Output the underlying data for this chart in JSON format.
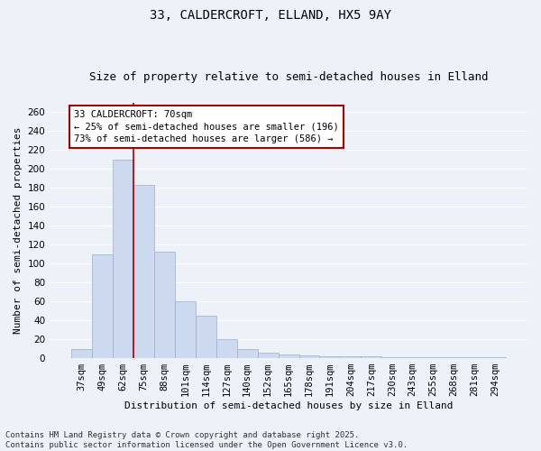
{
  "title": "33, CALDERCROFT, ELLAND, HX5 9AY",
  "subtitle": "Size of property relative to semi-detached houses in Elland",
  "xlabel": "Distribution of semi-detached houses by size in Elland",
  "ylabel": "Number of semi-detached properties",
  "footer1": "Contains HM Land Registry data © Crown copyright and database right 2025.",
  "footer2": "Contains public sector information licensed under the Open Government Licence v3.0.",
  "categories": [
    "37sqm",
    "49sqm",
    "62sqm",
    "75sqm",
    "88sqm",
    "101sqm",
    "114sqm",
    "127sqm",
    "140sqm",
    "152sqm",
    "165sqm",
    "178sqm",
    "191sqm",
    "204sqm",
    "217sqm",
    "230sqm",
    "243sqm",
    "255sqm",
    "268sqm",
    "281sqm",
    "294sqm"
  ],
  "values": [
    10,
    110,
    210,
    183,
    113,
    60,
    45,
    20,
    10,
    6,
    4,
    3,
    2,
    2,
    2,
    1,
    1,
    1,
    1,
    1,
    1
  ],
  "highlight_index": 2,
  "bar_color": "#ccd9ee",
  "bar_edge_color": "#9ab0cc",
  "highlight_line_color": "#aa0000",
  "annotation_text": "33 CALDERCROFT: 70sqm\n← 25% of semi-detached houses are smaller (196)\n73% of semi-detached houses are larger (586) →",
  "ylim": [
    0,
    270
  ],
  "yticks": [
    0,
    20,
    40,
    60,
    80,
    100,
    120,
    140,
    160,
    180,
    200,
    220,
    240,
    260
  ],
  "background_color": "#edf2f9",
  "grid_color": "#ffffff",
  "title_fontsize": 10,
  "subtitle_fontsize": 9,
  "axis_label_fontsize": 8,
  "tick_fontsize": 7.5,
  "footer_fontsize": 6.5
}
